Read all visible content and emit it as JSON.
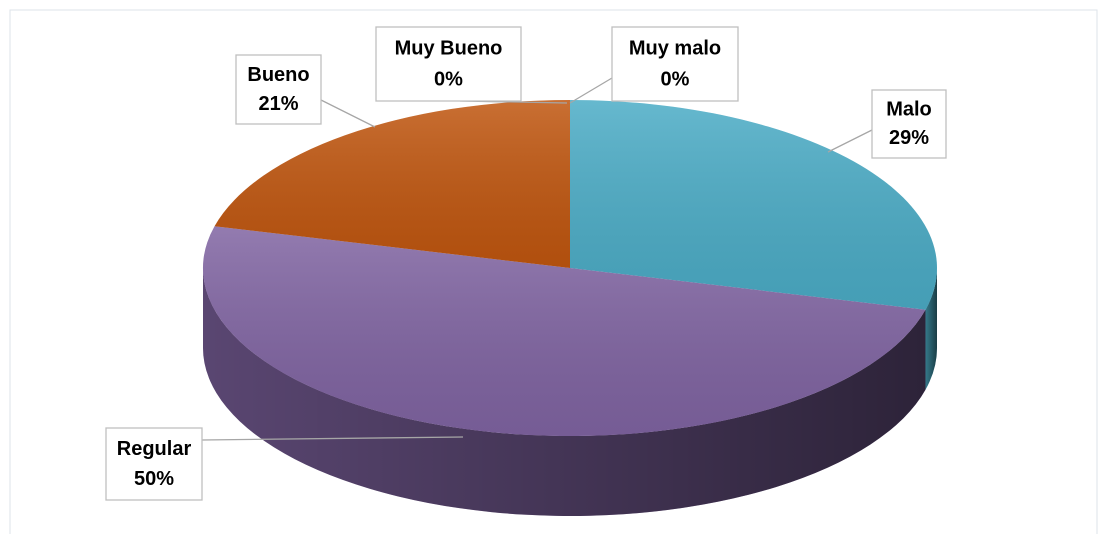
{
  "chart_data": {
    "type": "pie",
    "style": "3d",
    "categories": [
      "Muy malo",
      "Malo",
      "Regular",
      "Bueno",
      "Muy Bueno"
    ],
    "values": [
      0,
      29,
      50,
      21,
      0
    ],
    "value_labels": [
      "0%",
      "29%",
      "50%",
      "21%",
      "0%"
    ],
    "colors": [
      "#4f81bd",
      "#4bacc6",
      "#8064a2",
      "#c0560f",
      "#9bbb59"
    ]
  }
}
